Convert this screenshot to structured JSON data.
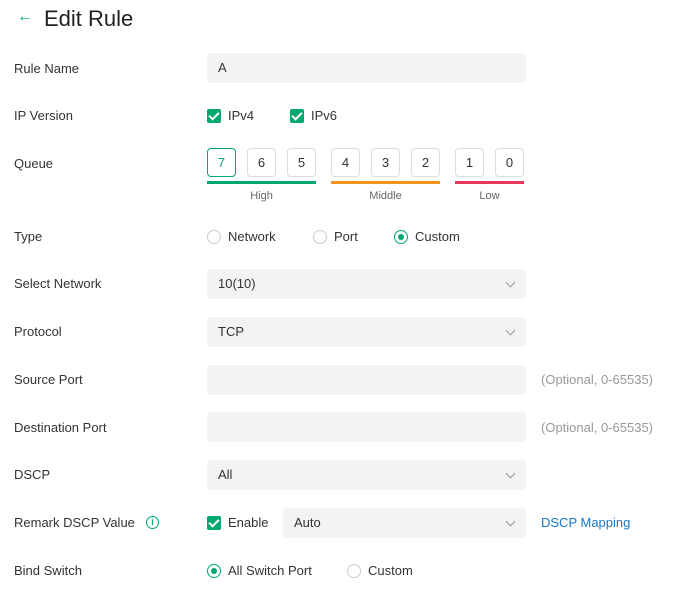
{
  "header": {
    "title": "Edit Rule",
    "back_icon": "arrow-left-icon"
  },
  "colors": {
    "accent": "#00a870",
    "high": "#00a870",
    "middle": "#f7941d",
    "low": "#e8365d",
    "link": "#1677c9"
  },
  "rule_name": {
    "label": "Rule Name",
    "value": "A"
  },
  "ip_version": {
    "label": "IP Version",
    "options": [
      {
        "label": "IPv4",
        "checked": true
      },
      {
        "label": "IPv6",
        "checked": true
      }
    ]
  },
  "queue": {
    "label": "Queue",
    "selected": "7",
    "values": [
      "7",
      "6",
      "5",
      "4",
      "3",
      "2",
      "1",
      "0"
    ],
    "groups": [
      "High",
      "Middle",
      "Low"
    ]
  },
  "type": {
    "label": "Type",
    "options": [
      "Network",
      "Port",
      "Custom"
    ],
    "selected": "Custom"
  },
  "select_network": {
    "label": "Select Network",
    "value": "10(10)"
  },
  "protocol": {
    "label": "Protocol",
    "value": "TCP"
  },
  "source_port": {
    "label": "Source Port",
    "value": "",
    "hint": "(Optional, 0-65535)"
  },
  "destination_port": {
    "label": "Destination Port",
    "value": "",
    "hint": "(Optional, 0-65535)"
  },
  "dscp": {
    "label": "DSCP",
    "value": "All"
  },
  "remark_dscp": {
    "label": "Remark DSCP Value",
    "enable_label": "Enable",
    "enabled": true,
    "value": "Auto",
    "link": "DSCP Mapping",
    "info_icon": "i"
  },
  "bind_switch": {
    "label": "Bind Switch",
    "options": [
      "All Switch Port",
      "Custom"
    ],
    "selected": "All Switch Port"
  }
}
